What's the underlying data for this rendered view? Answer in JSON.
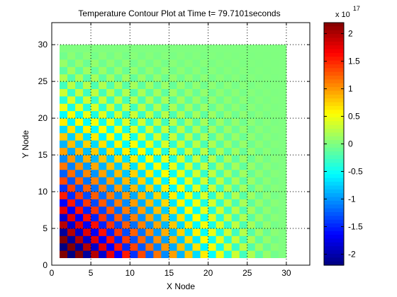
{
  "chart_data": {
    "type": "heatmap",
    "title": "Temperature Contour Plot at Time t= 79.7101seconds",
    "xlabel": "X Node",
    "ylabel": "Y Node",
    "xlim": [
      0,
      33
    ],
    "ylim": [
      0,
      33
    ],
    "x_ticks": [
      0,
      5,
      10,
      15,
      20,
      25,
      30
    ],
    "y_ticks": [
      0,
      5,
      10,
      15,
      20,
      25,
      30
    ],
    "x_tick_labels": [
      "0",
      "5",
      "10",
      "15",
      "20",
      "25",
      "30"
    ],
    "y_tick_labels": [
      "0",
      "5",
      "10",
      "15",
      "20",
      "25",
      "30"
    ],
    "grid": "dotted",
    "grid_range": {
      "x_nodes": [
        1,
        30
      ],
      "y_nodes": [
        1,
        30
      ]
    },
    "value_scale_exponent": 17,
    "value_pattern": "alternating-sign checkerboard, largest magnitude near (1,1), decaying to 0 toward x=30, y=30",
    "peak_magnitude": 2.2,
    "colorbar": {
      "colormap": "jet",
      "range": [
        -2.2,
        2.2
      ],
      "ticks": [
        -2,
        -1.5,
        -1,
        -0.5,
        0,
        0.5,
        1,
        1.5,
        2
      ],
      "tick_labels": [
        "-2",
        "-1.5",
        "-1",
        "-0.5",
        "0",
        "0.5",
        "1",
        "1.5",
        "2"
      ],
      "multiplier_label": "x 10",
      "multiplier_exponent": "17"
    }
  }
}
